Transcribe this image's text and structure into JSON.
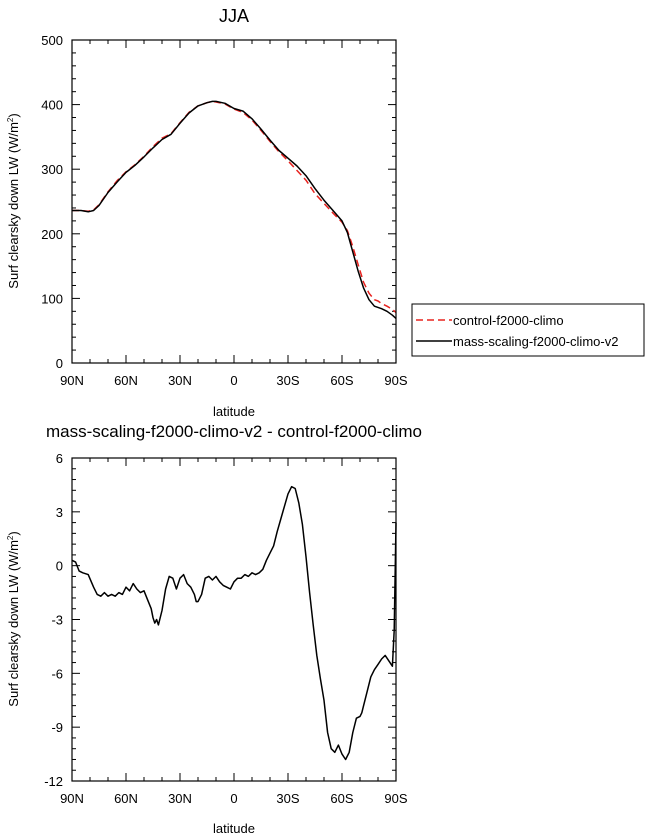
{
  "chart_data": [
    {
      "type": "line",
      "title": "JJA",
      "xlabel": "latitude",
      "ylabel": "Surf clearsky down LW (W/m",
      "ylabel_sup": "2",
      "ylabel_close": ")",
      "xlim": [
        -90,
        90
      ],
      "ylim": [
        0,
        500
      ],
      "x_ticks": [
        -90,
        -60,
        -30,
        0,
        30,
        60,
        90
      ],
      "x_tick_labels": [
        "90N",
        "60N",
        "30N",
        "0",
        "30S",
        "60S",
        "90S"
      ],
      "y_ticks": [
        0,
        100,
        200,
        300,
        400,
        500
      ],
      "y_tick_labels": [
        "0",
        "100",
        "200",
        "300",
        "400",
        "500"
      ],
      "legend_position": "outside-right",
      "series": [
        {
          "name": "control-f2000-climo",
          "color": "#e8231f",
          "dash": "dashed",
          "x": [
            -90,
            -85,
            -81,
            -78,
            -75,
            -70,
            -65,
            -60,
            -55,
            -50,
            -45,
            -40,
            -35,
            -30,
            -25,
            -20,
            -15,
            -12,
            -10,
            -5,
            0,
            5,
            10,
            15,
            20,
            25,
            30,
            35,
            40,
            45,
            50,
            55,
            60,
            63,
            66,
            69,
            72,
            75,
            78,
            80,
            82,
            85,
            88,
            90
          ],
          "values": [
            236,
            236,
            235,
            237,
            245,
            265,
            282,
            296,
            307,
            320,
            335,
            348,
            355,
            372,
            388,
            398,
            403,
            405,
            404,
            401,
            393,
            388,
            376,
            360,
            343,
            327,
            313,
            298,
            283,
            262,
            247,
            232,
            218,
            205,
            180,
            152,
            125,
            108,
            98,
            96,
            92,
            88,
            83,
            78
          ]
        },
        {
          "name": "mass-scaling-f2000-climo-v2",
          "color": "#000000",
          "dash": "solid",
          "x": [
            -90,
            -85,
            -81,
            -78,
            -75,
            -70,
            -65,
            -60,
            -55,
            -50,
            -45,
            -40,
            -35,
            -30,
            -25,
            -20,
            -15,
            -12,
            -10,
            -5,
            0,
            5,
            10,
            15,
            20,
            25,
            30,
            35,
            40,
            45,
            50,
            55,
            60,
            63,
            66,
            69,
            72,
            75,
            78,
            80,
            82,
            85,
            88,
            90
          ],
          "values": [
            236,
            236,
            234,
            236,
            244,
            264,
            280,
            295,
            306,
            319,
            333,
            346,
            354,
            371,
            387,
            398,
            403,
            405,
            405,
            402,
            394,
            390,
            378,
            362,
            345,
            329,
            317,
            305,
            290,
            270,
            252,
            236,
            220,
            202,
            172,
            142,
            116,
            98,
            88,
            86,
            84,
            80,
            74,
            69
          ]
        }
      ]
    },
    {
      "type": "line",
      "title": "mass-scaling-f2000-climo-v2 - control-f2000-climo",
      "xlabel": "latitude",
      "ylabel": "Surf clearsky down LW (W/m",
      "ylabel_sup": "2",
      "ylabel_close": ")",
      "xlim": [
        -90,
        90
      ],
      "ylim": [
        -12,
        6
      ],
      "x_ticks": [
        -90,
        -60,
        -30,
        0,
        30,
        60,
        90
      ],
      "x_tick_labels": [
        "90N",
        "60N",
        "30N",
        "0",
        "30S",
        "60S",
        "90S"
      ],
      "y_ticks": [
        -12,
        -9,
        -6,
        -3,
        0,
        3,
        6
      ],
      "y_tick_labels": [
        "-12",
        "-9",
        "-6",
        "-3",
        "0",
        "3",
        "6"
      ],
      "series": [
        {
          "color": "#000000",
          "dash": "solid",
          "x": [
            -90,
            -88,
            -86,
            -84,
            -81,
            -78,
            -76,
            -74,
            -72,
            -70,
            -68,
            -66,
            -64,
            -62,
            -60,
            -58,
            -56,
            -54,
            -52,
            -50,
            -48,
            -46,
            -45,
            -44,
            -43,
            -42,
            -40,
            -38,
            -36,
            -34,
            -32,
            -30,
            -28,
            -26,
            -24,
            -22,
            -21,
            -20,
            -18,
            -16,
            -14,
            -12,
            -10,
            -8,
            -6,
            -4,
            -2,
            0,
            2,
            4,
            6,
            8,
            10,
            12,
            14,
            16,
            18,
            20,
            22,
            24,
            26,
            28,
            30,
            32,
            34,
            36,
            38,
            40,
            42,
            44,
            46,
            48,
            50,
            52,
            54,
            56,
            58,
            60,
            62,
            64,
            66,
            68,
            70,
            71,
            72,
            74,
            76,
            78,
            80,
            82,
            84,
            86,
            88,
            89,
            90
          ],
          "values": [
            0.3,
            0.2,
            -0.3,
            -0.4,
            -0.5,
            -1.2,
            -1.6,
            -1.7,
            -1.5,
            -1.7,
            -1.6,
            -1.7,
            -1.5,
            -1.6,
            -1.2,
            -1.4,
            -1.0,
            -1.3,
            -1.5,
            -1.4,
            -1.9,
            -2.4,
            -2.9,
            -3.2,
            -3.0,
            -3.3,
            -2.5,
            -1.3,
            -0.6,
            -0.7,
            -1.3,
            -0.7,
            -0.5,
            -1.0,
            -1.2,
            -1.6,
            -2.0,
            -2.0,
            -1.6,
            -0.7,
            -0.6,
            -0.8,
            -0.6,
            -0.9,
            -1.1,
            -1.2,
            -1.3,
            -0.9,
            -0.7,
            -0.7,
            -0.5,
            -0.6,
            -0.4,
            -0.5,
            -0.4,
            -0.2,
            0.3,
            0.7,
            1.1,
            1.9,
            2.6,
            3.3,
            4.0,
            4.4,
            4.3,
            3.5,
            2.3,
            0.5,
            -1.5,
            -3.3,
            -5.0,
            -6.3,
            -7.5,
            -9.3,
            -10.2,
            -10.4,
            -10.0,
            -10.5,
            -10.8,
            -10.4,
            -9.3,
            -8.5,
            -8.4,
            -8.2,
            -7.8,
            -7.0,
            -6.2,
            -5.8,
            -5.5,
            -5.2,
            -5.0,
            -5.3,
            -5.6,
            -3.6,
            2.4
          ]
        }
      ]
    }
  ]
}
